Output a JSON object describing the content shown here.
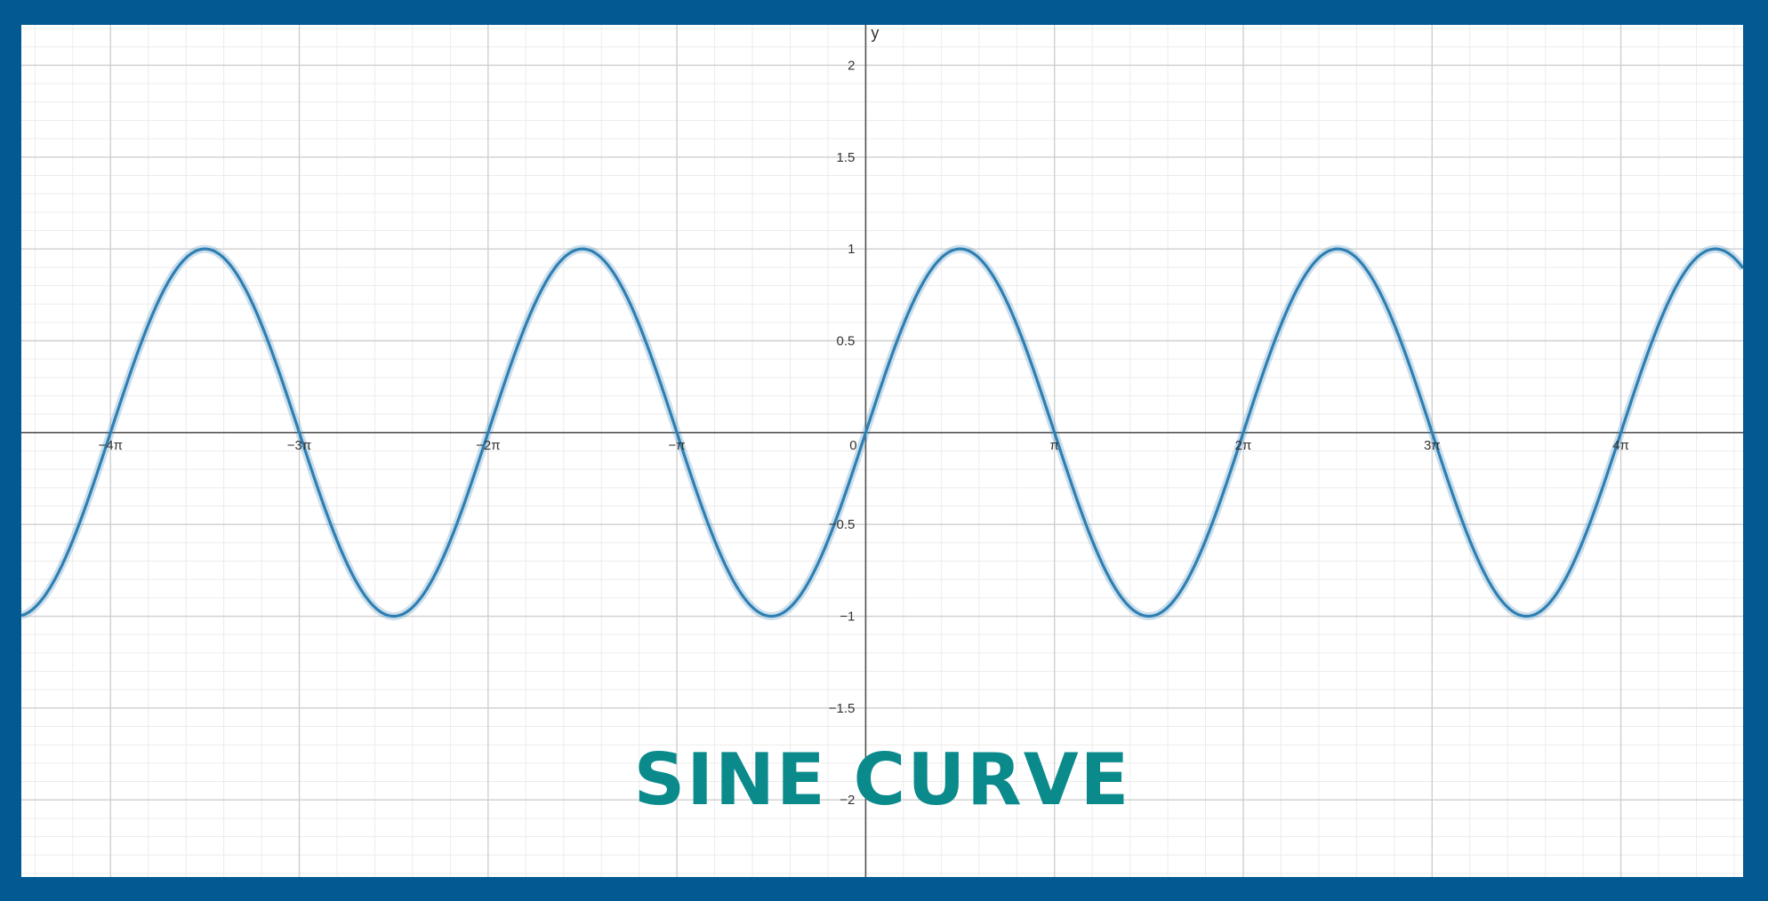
{
  "chart_data": {
    "type": "line",
    "title": "SINE CURVE",
    "xlabel": "",
    "ylabel": "y",
    "function": "sin(x)",
    "xlim": [
      -14.05,
      14.6
    ],
    "ylim": [
      -2.42,
      2.22
    ],
    "x_ticks": [
      {
        "value": -12.566,
        "label": "−4π"
      },
      {
        "value": -9.425,
        "label": "−3π"
      },
      {
        "value": -6.283,
        "label": "−2π"
      },
      {
        "value": -3.142,
        "label": "−π"
      },
      {
        "value": 3.142,
        "label": "π"
      },
      {
        "value": 6.283,
        "label": "2π"
      },
      {
        "value": 9.425,
        "label": "3π"
      },
      {
        "value": 12.566,
        "label": "4π"
      }
    ],
    "origin_label": "0",
    "y_ticks": [
      {
        "value": 2,
        "label": "2"
      },
      {
        "value": 1.5,
        "label": "1.5"
      },
      {
        "value": 1,
        "label": "1"
      },
      {
        "value": 0.5,
        "label": "0.5"
      },
      {
        "value": -0.5,
        "label": "−0.5"
      },
      {
        "value": -1,
        "label": "−1"
      },
      {
        "value": -1.5,
        "label": "−1.5"
      },
      {
        "value": -2,
        "label": "−2"
      }
    ],
    "grid": true,
    "series": [
      {
        "color": "#2f7fb3"
      }
    ]
  },
  "colors": {
    "frame": "#035a93",
    "title": "#0b8a8c",
    "major_grid": "#cfcfcf",
    "minor_grid": "#ececec",
    "axis": "#555555"
  }
}
